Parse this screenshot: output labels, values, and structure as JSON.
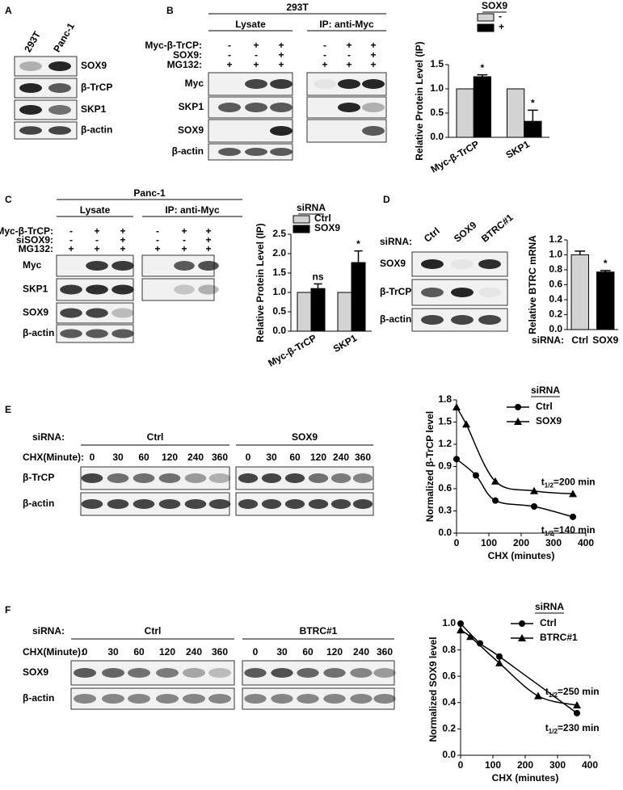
{
  "panels": {
    "A": {
      "letter": "A",
      "lanes": [
        "293T",
        "Panc-1"
      ],
      "rows": [
        "SOX9",
        "β-TrCP",
        "SKP1",
        "β-actin"
      ]
    },
    "B": {
      "letter": "B",
      "cell": "293T",
      "groups": [
        "Lysate",
        "IP: anti-Myc"
      ],
      "conditions": [
        {
          "label": "Myc-β-TrCP:",
          "signs": [
            "-",
            "+",
            "+"
          ]
        },
        {
          "label": "SOX9:",
          "signs": [
            "-",
            "-",
            "+"
          ]
        },
        {
          "label": "MG132:",
          "signs": [
            "+",
            "+",
            "+"
          ]
        }
      ],
      "rows": [
        "Myc",
        "SKP1",
        "SOX9",
        "β-actin"
      ]
    },
    "C": {
      "letter": "C",
      "cell": "Panc-1",
      "groups": [
        "Lysate",
        "IP: anti-Myc"
      ],
      "conditions": [
        {
          "label": "Myc-β-TrCP:",
          "signs": [
            "-",
            "+",
            "+"
          ]
        },
        {
          "label": "siSOX9:",
          "signs": [
            "-",
            "-",
            "+"
          ]
        },
        {
          "label": "MG132:",
          "signs": [
            "+",
            "+",
            "+"
          ]
        }
      ],
      "rows": [
        "Myc",
        "SKP1",
        "SOX9",
        "β-actin"
      ]
    },
    "D": {
      "letter": "D",
      "label": "siRNA:",
      "lanes": [
        "Ctrl",
        "SOX9",
        "BTRC#1"
      ],
      "rows": [
        "SOX9",
        "β-TrCP",
        "β-actin"
      ]
    },
    "E": {
      "letter": "E",
      "label": "siRNA:",
      "groups": [
        "Ctrl",
        "SOX9"
      ],
      "time_label": "CHX(Minute):",
      "times": [
        0,
        30,
        60,
        120,
        240,
        360
      ],
      "rows": [
        "β-TrCP",
        "β-actin"
      ]
    },
    "F": {
      "letter": "F",
      "label": "siRNA:",
      "groups": [
        "Ctrl",
        "BTRC#1"
      ],
      "time_label": "CHX(Minute):",
      "times": [
        0,
        30,
        60,
        120,
        240,
        360
      ],
      "rows": [
        "SOX9",
        "β-actin"
      ]
    }
  },
  "chart_data": [
    {
      "type": "bar",
      "y_label": "Relative Protein Level (IP)",
      "categories": [
        "Myc-β-TrCP",
        "SKP1"
      ],
      "legend_title": "SOX9",
      "series": [
        {
          "name": "-",
          "color": "#d3d3d3",
          "values": [
            1,
            1
          ]
        },
        {
          "name": "+",
          "color": "#000000",
          "values": [
            1.25,
            0.33
          ],
          "errors": [
            0.04,
            0.23
          ],
          "marks": [
            "*",
            "*"
          ]
        }
      ],
      "ylim": [
        0,
        1.5
      ],
      "yticks": [
        {
          "value": 0,
          "label": "0.0"
        },
        0.5,
        {
          "value": 1,
          "label": "1.0"
        },
        1.5
      ]
    },
    {
      "type": "bar",
      "y_label": "Relative Protein Level (IP)",
      "categories": [
        "Myc-β-TrCP",
        "SKP1"
      ],
      "legend_title": "siRNA",
      "series": [
        {
          "name": "Ctrl",
          "color": "#d3d3d3",
          "values": [
            1,
            1
          ]
        },
        {
          "name": "SOX9",
          "color": "#000000",
          "values": [
            1.1,
            1.77
          ],
          "errors": [
            0.12,
            0.3
          ],
          "marks": [
            "ns",
            "*"
          ]
        }
      ],
      "ylim": [
        0,
        2.5
      ],
      "yticks": [
        {
          "value": 0,
          "label": "0.0"
        },
        0.5,
        {
          "value": 1,
          "label": "1.0"
        },
        1.5,
        {
          "value": 2,
          "label": "2.0"
        },
        2.5
      ]
    },
    {
      "type": "bar",
      "y_label": "Relative BTRC mRNA",
      "x_label": "siRNA:",
      "categories": [
        "Ctrl",
        "SOX9"
      ],
      "values": [
        1.0,
        0.77
      ],
      "errors": [
        0.05,
        0.02
      ],
      "marks": [
        null,
        "*"
      ],
      "colors": [
        "#d3d3d3",
        "#000000"
      ],
      "ylim": [
        0,
        1.2
      ],
      "yticks": [
        {
          "value": 0,
          "label": "0.0"
        },
        0.2,
        0.4,
        0.6,
        0.8,
        {
          "value": 1,
          "label": "1.0"
        },
        1.2
      ]
    },
    {
      "type": "line",
      "x_label": "CHX (minutes)",
      "y_label": "Normalized β-TrCP level",
      "legend_title": "siRNA",
      "half_life_symbol": "t",
      "half_life_subscript": "1/2",
      "series": [
        {
          "name": "Ctrl",
          "marker": "circle",
          "x": [
            0,
            60,
            120,
            240,
            360
          ],
          "values": [
            1.0,
            0.78,
            0.44,
            0.36,
            0.22
          ],
          "half_life": "=140 min"
        },
        {
          "name": "SOX9",
          "marker": "triangle",
          "x": [
            0,
            30,
            120,
            240,
            360
          ],
          "values": [
            1.7,
            1.47,
            0.7,
            0.57,
            0.53
          ],
          "half_life": "=200 min"
        }
      ],
      "xlim": [
        0,
        400
      ],
      "xticks": [
        0,
        100,
        200,
        300,
        400
      ],
      "ylim": [
        0,
        1.8
      ],
      "yticks": [
        {
          "value": 0,
          "label": "0.0"
        },
        0.3,
        0.6,
        0.9,
        1.2,
        1.5,
        1.8
      ]
    },
    {
      "type": "line",
      "x_label": "CHX (minutes)",
      "y_label": "Normalized SOX9 level",
      "legend_title": "siRNA",
      "half_life_symbol": "t",
      "half_life_subscript": "1/2",
      "series": [
        {
          "name": "Ctrl",
          "marker": "circle",
          "x": [
            0,
            60,
            120,
            360
          ],
          "values": [
            1.0,
            0.85,
            0.75,
            0.32
          ],
          "half_life": "=230 min"
        },
        {
          "name": "BTRC#1",
          "marker": "triangle",
          "x": [
            0,
            30,
            120,
            240,
            360
          ],
          "values": [
            0.95,
            0.9,
            0.7,
            0.45,
            0.38
          ],
          "half_life": "=250 min"
        }
      ],
      "xlim": [
        0,
        400
      ],
      "xticks": [
        0,
        100,
        200,
        300,
        400
      ],
      "ylim": [
        0,
        1.0
      ],
      "yticks": [
        {
          "value": 0,
          "label": "0.0"
        },
        0.2,
        0.4,
        0.6,
        0.8,
        {
          "value": 1,
          "label": "1.0"
        }
      ]
    }
  ]
}
